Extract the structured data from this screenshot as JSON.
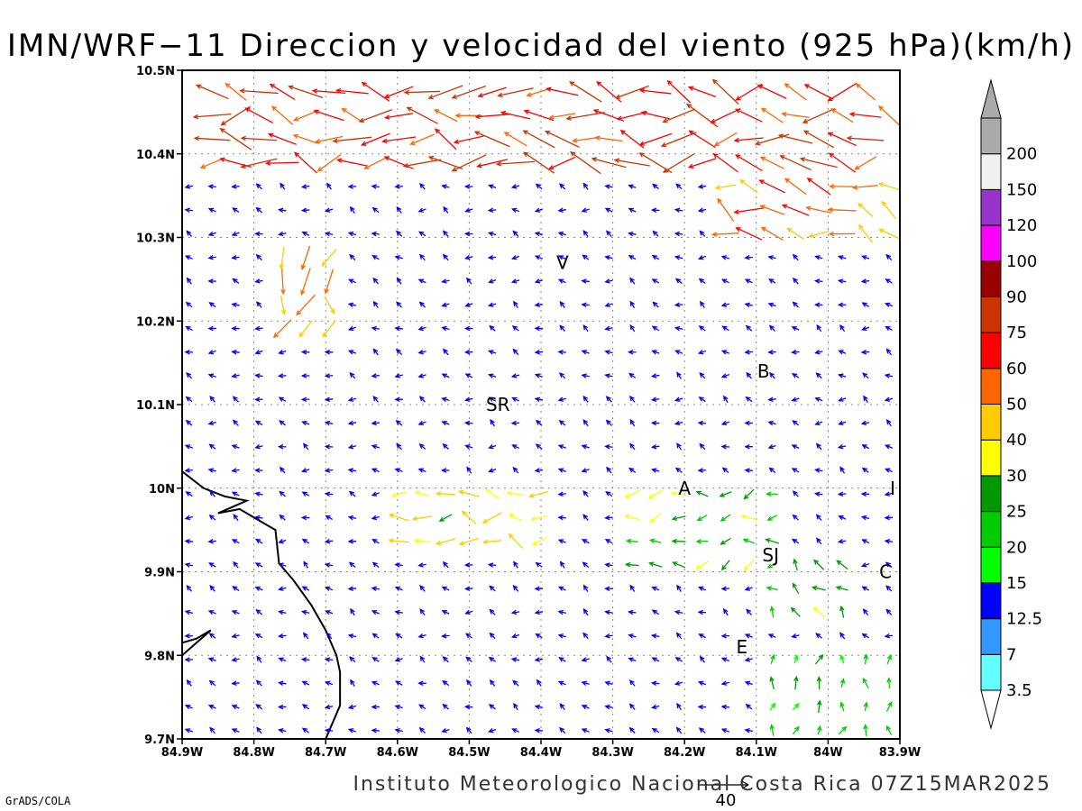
{
  "title": "IMN/WRF−11 Direccion y velocidad del viento (925 hPa)(km/h)",
  "footer": "Instituto Meteorologico Nacional Costa Rica 07Z15MAR2025",
  "credit": "GrADS/COLA",
  "reference_vector": {
    "label": "40",
    "speed": 40
  },
  "colors": {
    "frame": "#000000",
    "grid": "#888888",
    "coast": "#000000"
  },
  "chart_data": {
    "type": "vector_field",
    "title": "IMN/WRF−11 Direccion y velocidad del viento (925 hPa)(km/h)",
    "units": "km/h",
    "xlim": [
      -84.9,
      -83.9
    ],
    "ylim": [
      9.7,
      10.5
    ],
    "x_ticks": [
      "84.9W",
      "84.8W",
      "84.7W",
      "84.6W",
      "84.5W",
      "84.4W",
      "84.3W",
      "84.2W",
      "84.1W",
      "84W",
      "83.9W"
    ],
    "y_ticks": [
      "9.7N",
      "9.8N",
      "9.9N",
      "10N",
      "10.1N",
      "10.2N",
      "10.3N",
      "10.4N",
      "10.5N"
    ],
    "grid": true,
    "cities": [
      {
        "label": "V",
        "lon": -84.37,
        "lat": 10.27
      },
      {
        "label": "B",
        "lon": -84.09,
        "lat": 10.14
      },
      {
        "label": "SR",
        "lon": -84.46,
        "lat": 10.1
      },
      {
        "label": "A",
        "lon": -84.2,
        "lat": 10.0
      },
      {
        "label": "I",
        "lon": -83.91,
        "lat": 10.0
      },
      {
        "label": "SJ",
        "lon": -84.08,
        "lat": 9.92
      },
      {
        "label": "C",
        "lon": -83.92,
        "lat": 9.9
      },
      {
        "label": "E",
        "lon": -84.12,
        "lat": 9.81
      }
    ],
    "coastline": [
      [
        -84.9,
        10.02
      ],
      [
        -84.87,
        10.0
      ],
      [
        -84.84,
        9.99
      ],
      [
        -84.81,
        9.985
      ],
      [
        -84.85,
        9.97
      ],
      [
        -84.82,
        9.975
      ],
      [
        -84.79,
        9.96
      ],
      [
        -84.77,
        9.95
      ],
      [
        -84.765,
        9.91
      ],
      [
        -84.745,
        9.89
      ],
      [
        -84.72,
        9.86
      ],
      [
        -84.7,
        9.83
      ],
      [
        -84.685,
        9.8
      ],
      [
        -84.68,
        9.78
      ],
      [
        -84.68,
        9.74
      ],
      [
        -84.7,
        9.7
      ]
    ],
    "inlet": [
      [
        -84.9,
        9.8
      ],
      [
        -84.86,
        9.83
      ],
      [
        -84.88,
        9.82
      ],
      [
        -84.9,
        9.815
      ]
    ],
    "colorbar": {
      "labels": [
        "3.5",
        "7",
        "12.5",
        "15",
        "20",
        "25",
        "30",
        "40",
        "50",
        "60",
        "75",
        "90",
        "100",
        "120",
        "150",
        "200"
      ],
      "bins": [
        {
          "from": 0,
          "to": 3.5,
          "color": "#66FFFF"
        },
        {
          "from": 3.5,
          "to": 7,
          "color": "#3399FF"
        },
        {
          "from": 7,
          "to": 12.5,
          "color": "#0000FF"
        },
        {
          "from": 12.5,
          "to": 15,
          "color": "#00FF00"
        },
        {
          "from": 15,
          "to": 20,
          "color": "#00CC00"
        },
        {
          "from": 20,
          "to": 25,
          "color": "#009900"
        },
        {
          "from": 25,
          "to": 30,
          "color": "#FFFF00"
        },
        {
          "from": 30,
          "to": 40,
          "color": "#FFCC00"
        },
        {
          "from": 40,
          "to": 50,
          "color": "#FF6600"
        },
        {
          "from": 50,
          "to": 60,
          "color": "#FF0000"
        },
        {
          "from": 60,
          "to": 75,
          "color": "#CC3300"
        },
        {
          "from": 75,
          "to": 90,
          "color": "#990000"
        },
        {
          "from": 90,
          "to": 100,
          "color": "#FF00FF"
        },
        {
          "from": 100,
          "to": 120,
          "color": "#9933CC"
        },
        {
          "from": 120,
          "to": 150,
          "color": "#F0F0F0"
        },
        {
          "from": 150,
          "to": 200,
          "color": "#AAAAAA"
        }
      ]
    },
    "wind_regions": [
      {
        "lat_min": 10.38,
        "lat_max": 10.5,
        "lon_min": -84.9,
        "lon_max": -83.9,
        "u": -55,
        "v": 4,
        "note": "strong easterly jet in north"
      },
      {
        "lat_min": 10.3,
        "lat_max": 10.38,
        "lon_min": -84.15,
        "lon_max": -83.9,
        "u": -40,
        "v": 18
      },
      {
        "lat_min": 10.18,
        "lat_max": 10.3,
        "lon_min": -84.78,
        "lon_max": -84.68,
        "u": -5,
        "v": -40
      },
      {
        "lat_min": 9.93,
        "lat_max": 10.0,
        "lon_min": -84.62,
        "lon_max": -84.4,
        "u": -30,
        "v": 5
      },
      {
        "lat_min": 9.9,
        "lat_max": 10.0,
        "lon_min": -84.3,
        "lon_max": -84.05,
        "u": -22,
        "v": -6
      },
      {
        "lat_min": 9.83,
        "lat_max": 9.93,
        "lon_min": -84.08,
        "lon_max": -83.98,
        "u": -15,
        "v": 15
      },
      {
        "lat_min": 9.7,
        "lat_max": 9.8,
        "lon_min": -84.1,
        "lon_max": -83.9,
        "u": 3,
        "v": 18
      },
      {
        "lat_min": 9.7,
        "lat_max": 10.3,
        "lon_min": -84.9,
        "lon_max": -83.9,
        "u": -9,
        "v": 3,
        "note": "weak background easterlies"
      }
    ]
  }
}
